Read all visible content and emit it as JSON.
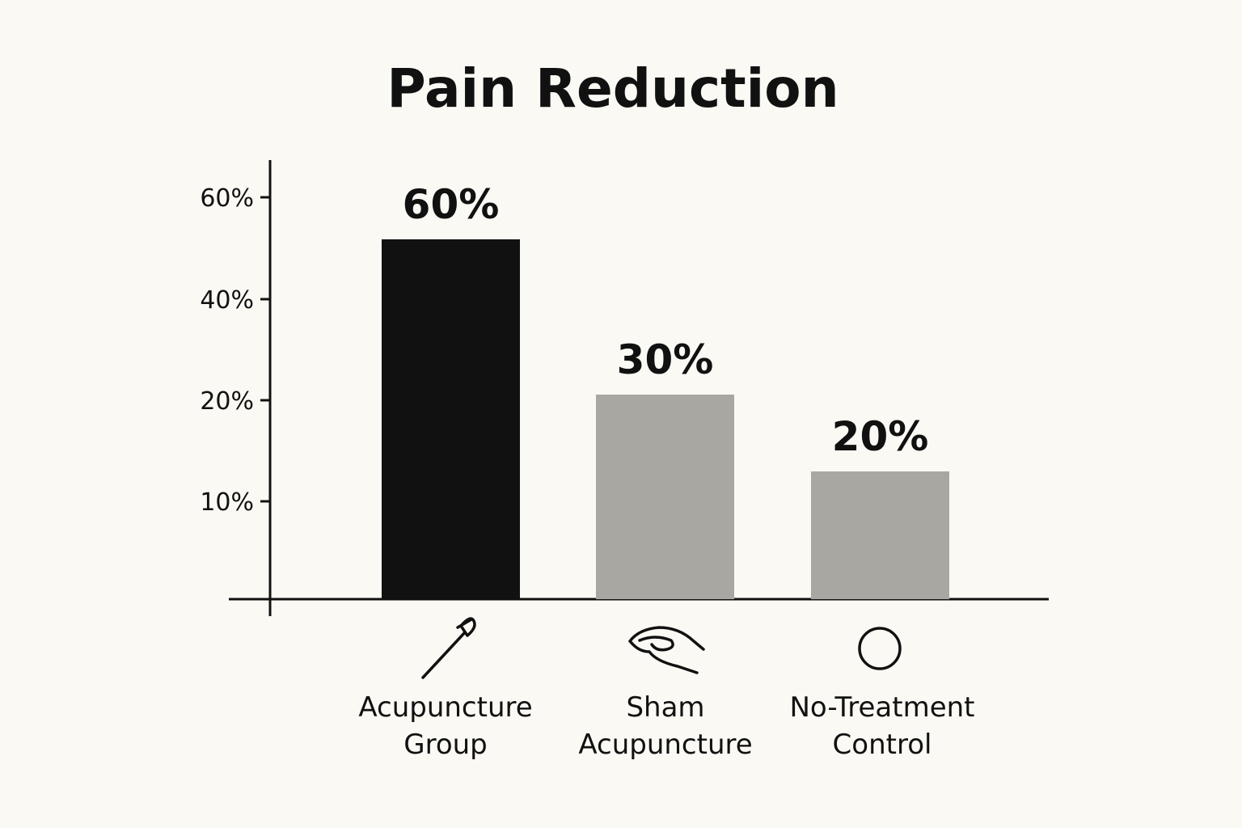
{
  "chart_data": {
    "type": "bar",
    "title": "Pain Reduction",
    "xlabel": "",
    "ylabel": "",
    "categories": [
      "Acupuncture Group",
      "Sham Acupuncture",
      "No-Treatment Control"
    ],
    "category_lines": [
      [
        "Acupuncture",
        "Group"
      ],
      [
        "Sham",
        "Acupuncture"
      ],
      [
        "No-Treatment",
        "Control"
      ]
    ],
    "category_icons": [
      "needle-icon",
      "hand-icon",
      "circle-icon"
    ],
    "values": [
      60,
      30,
      20
    ],
    "value_labels": [
      "60%",
      "30%",
      "20%"
    ],
    "bar_colors": [
      "#111111",
      "#a9a7a2",
      "#a9a7a2"
    ],
    "y_ticks": [
      {
        "value": 10,
        "label": "10%"
      },
      {
        "value": 20,
        "label": "20%"
      },
      {
        "value": 40,
        "label": "40%"
      },
      {
        "value": 60,
        "label": "60%"
      }
    ],
    "ylim": [
      0,
      60
    ],
    "grid": false,
    "legend": "none"
  }
}
